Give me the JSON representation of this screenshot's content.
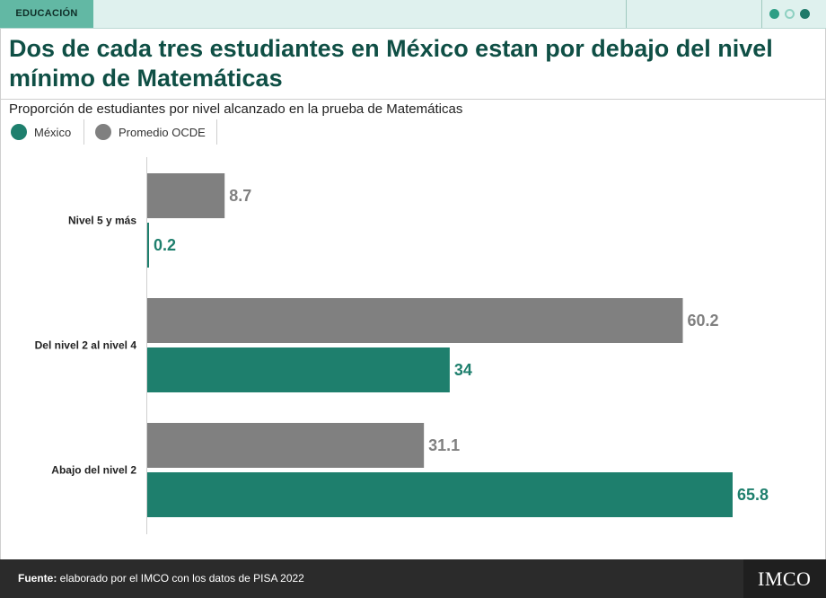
{
  "header": {
    "section_tag": "EDUCACIÓN",
    "dot_colors": [
      "#2e9e85",
      "#8fd1c2",
      "#1f7a6a"
    ]
  },
  "title": "Dos de cada tres estudiantes en México estan por debajo del nivel mínimo de Matemáticas",
  "subtitle": "Proporción de estudiantes por nivel alcanzado en la prueba de Matemáticas",
  "legend": [
    {
      "label": "México",
      "color": "#1e7f6d"
    },
    {
      "label": "Promedio OCDE",
      "color": "#808080"
    }
  ],
  "chart_data": {
    "type": "bar",
    "orientation": "horizontal",
    "categories": [
      "Nivel 5 y más",
      "Del nivel 2 al nivel 4",
      "Abajo del nivel 2"
    ],
    "series": [
      {
        "name": "Promedio OCDE",
        "color": "#808080",
        "values": [
          8.7,
          60.2,
          31.1
        ],
        "labels": [
          "8.7",
          "60.2",
          "31.1"
        ]
      },
      {
        "name": "México",
        "color": "#1e7f6d",
        "values": [
          0.2,
          34,
          65.8
        ],
        "labels": [
          "0.2",
          "34",
          "65.8"
        ]
      }
    ],
    "xlim": [
      0,
      66.5
    ],
    "grid": false,
    "legend_position": "top-left"
  },
  "footer": {
    "source_label": "Fuente:",
    "source_text": " elaborado por el IMCO con los datos de PISA 2022",
    "logo_text": "IMCO"
  }
}
